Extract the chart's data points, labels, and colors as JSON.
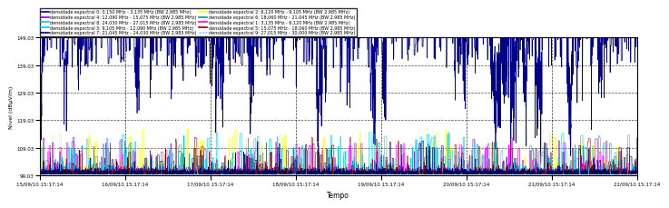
{
  "xlabel": "Tempo",
  "ylabel": "Nível (dBµV/m)",
  "ylim": [
    99.03,
    149.03
  ],
  "yticks": [
    99.03,
    109.03,
    119.03,
    129.03,
    139.03,
    149.03
  ],
  "xtick_labels": [
    "15/09/10 15:17:14",
    "16/09/10 15:17:14",
    "17/09/10 15:17:14",
    "18/09/10 15:17:14",
    "19/09/10 15:17:14",
    "20/09/10 15:17:14",
    "21/09/10 15:17:14",
    "22/09/10 15:17:14"
  ],
  "legend_entries": [
    "densidade espectral 0: 0,150 MHz - 3,135 MHz (BW 2,985 MHz)",
    "densidade espectral 2: 6,120 MHz - 9,105 MHz (BW 2,985 MHz)",
    "densidade espectral 4: 12,090 MHz - 15,075 MHz (BW 2,985 MHz)",
    "densidade espectral 6: 18,060 MHz - 21,045 MHz (BW 2,985 MHz)",
    "densidade espectral 8: 24,030 MHz - 27,015 MHz (BW 2,985 MHz)",
    "densidade espectral 1: 3,135 MHz - 6,120 MHz (BW 2,985 MHz)",
    "densidade espectral 3: 9,105 MHz - 12,090 MHz (BW 2,985 MHz)",
    "densidade espectral 5: 15,075 MHz - 18,060 MHz (BW 2,985 MHz)",
    "densidade espectral 7: 21,045 MHz - 24,030 MHz (BW 2,985 MHz)",
    "densidade espectral 9: 27,015 MHz - 30,000 MHz (BW 2,985 MHz)"
  ],
  "line_colors": [
    "#00008B",
    "#FFFF00",
    "#9900CC",
    "#009999",
    "#00CCCC",
    "#FF00FF",
    "#00CCFF",
    "#990000",
    "#000066",
    "#AADDFF"
  ],
  "bg_color": "#FFFFFF",
  "plot_bg_color": "#FFFFFF",
  "n_days": 7,
  "n_points": 5000,
  "seed": 42
}
